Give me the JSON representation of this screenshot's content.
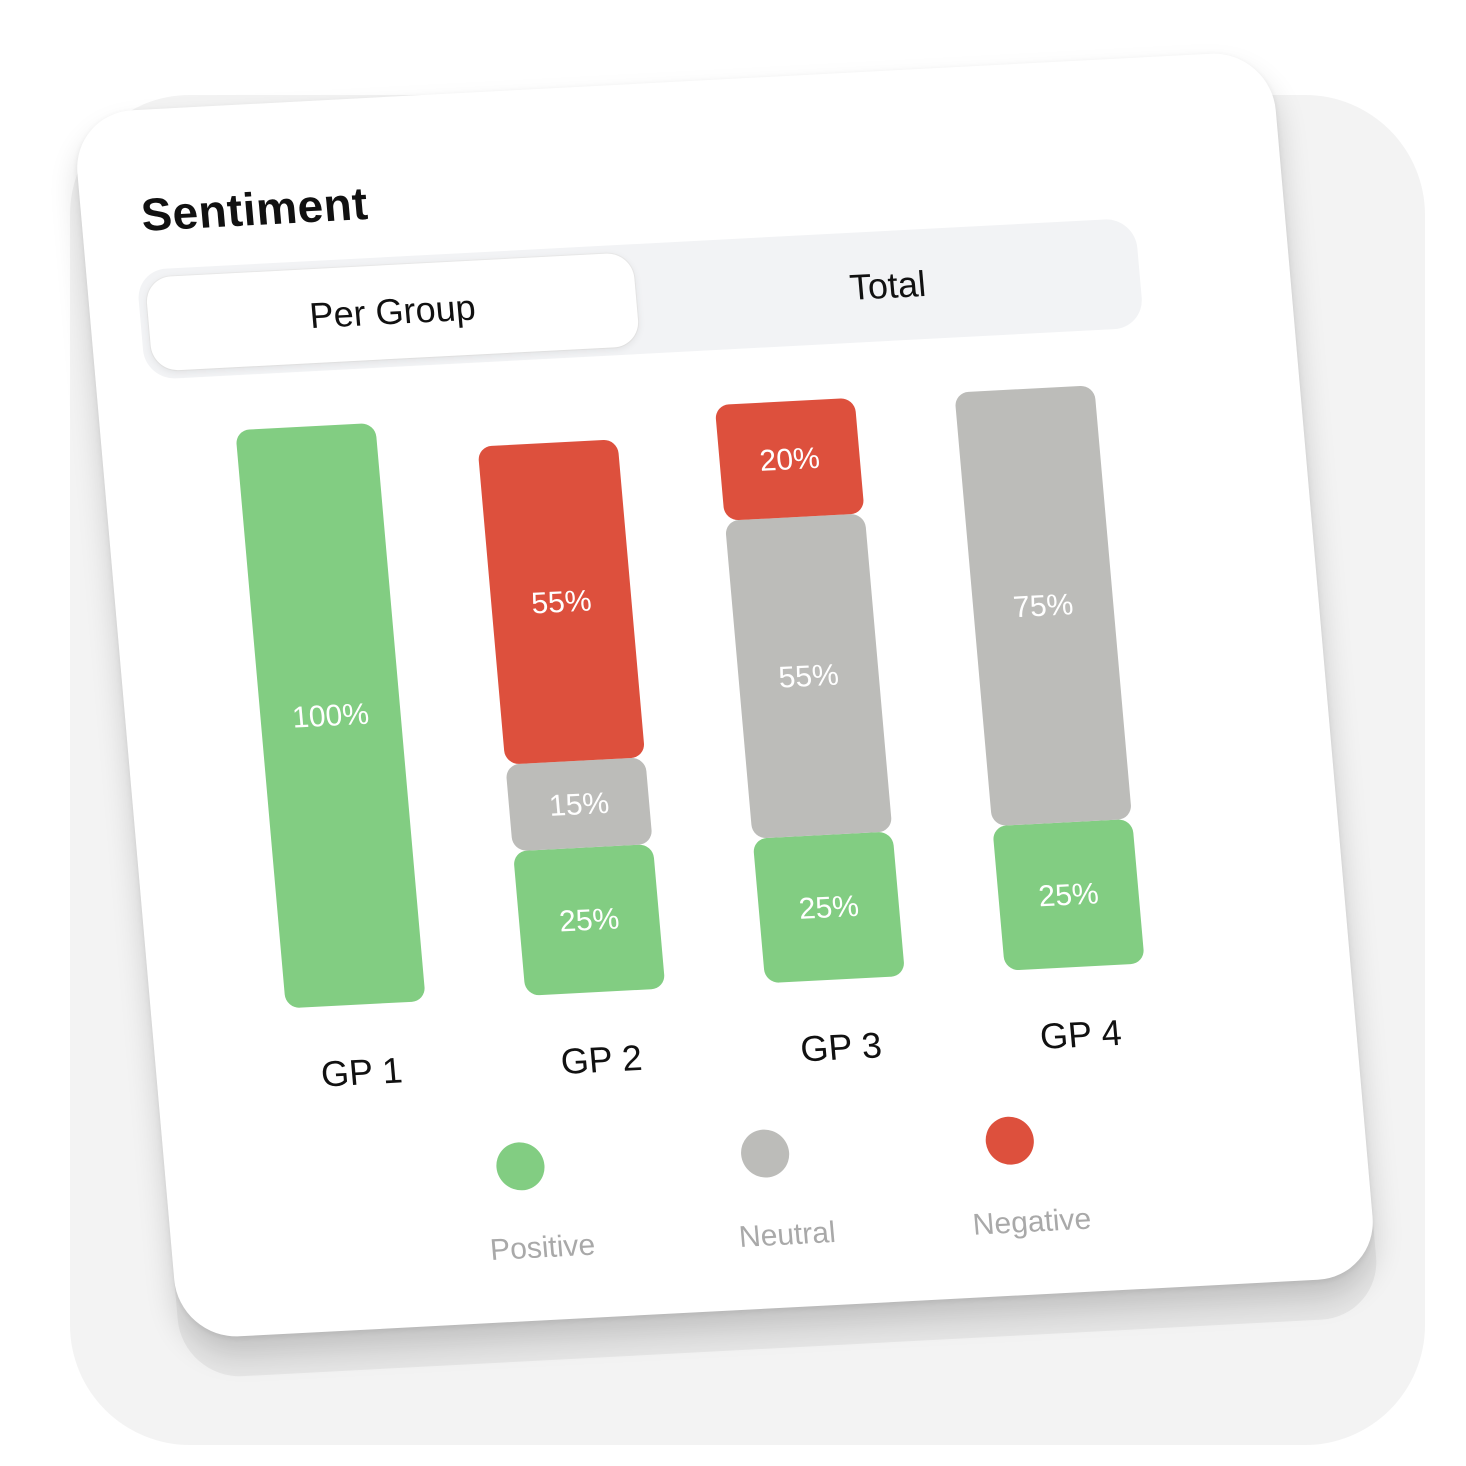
{
  "card": {
    "title": "Sentiment",
    "tabs": [
      {
        "label": "Per Group",
        "active": true
      },
      {
        "label": "Total",
        "active": false
      }
    ]
  },
  "colors": {
    "Positive": "#82cd82",
    "Neutral": "#bcbcb9",
    "Negative": "#dd503d"
  },
  "chart_data": {
    "type": "bar",
    "stacked": true,
    "title": "Sentiment",
    "categories": [
      "GP 1",
      "GP 2",
      "GP 3",
      "GP 4"
    ],
    "series": [
      {
        "name": "Positive",
        "values": [
          100,
          25,
          25,
          25
        ]
      },
      {
        "name": "Neutral",
        "values": [
          0,
          15,
          55,
          75
        ]
      },
      {
        "name": "Negative",
        "values": [
          0,
          55,
          20,
          0
        ]
      }
    ],
    "value_labels": [
      "100%",
      "25%",
      "15%",
      "55%",
      "25%",
      "55%",
      "20%",
      "25%",
      "75%"
    ],
    "ylim": [
      0,
      100
    ],
    "grid": false,
    "legend_position": "bottom"
  }
}
